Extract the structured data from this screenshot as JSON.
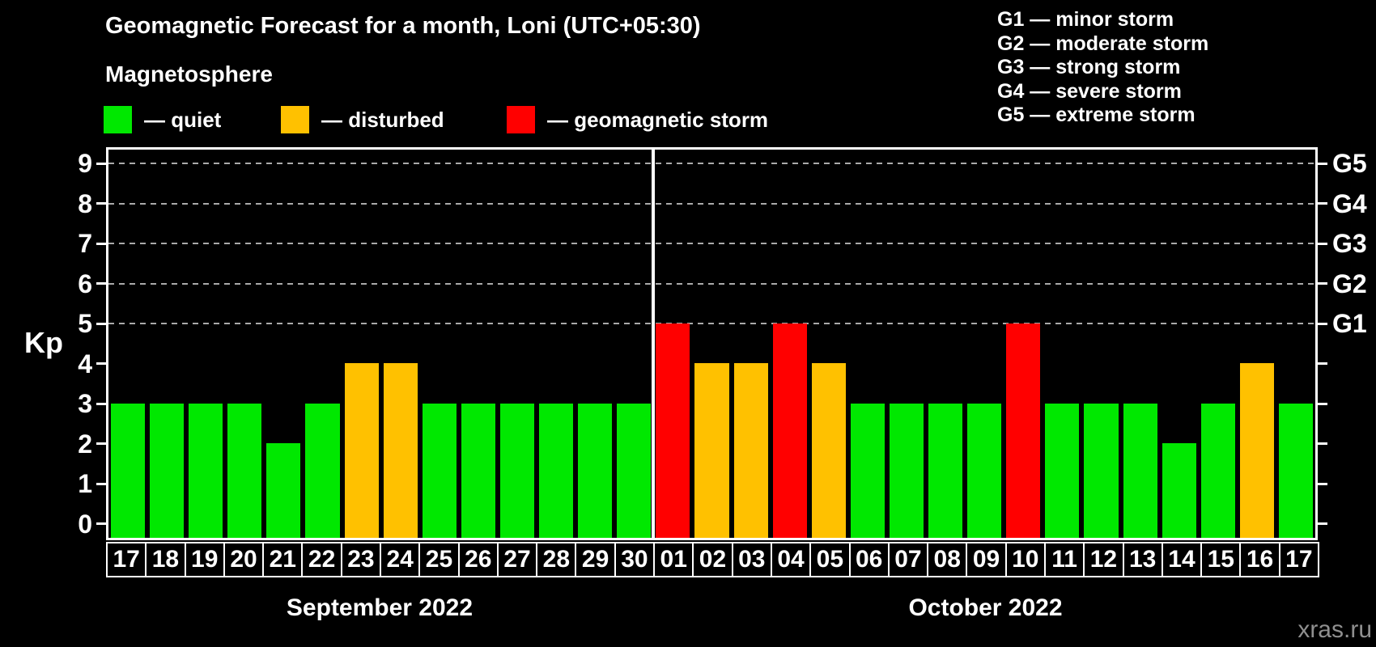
{
  "title": "Geomagnetic Forecast for a month, Loni (UTC+05:30)",
  "subtitle": "Magnetosphere",
  "legend": {
    "items": [
      {
        "name": "quiet",
        "label": "— quiet",
        "color": "#00E800"
      },
      {
        "name": "disturbed",
        "label": "— disturbed",
        "color": "#FFC100"
      },
      {
        "name": "geomagnetic-storm",
        "label": "— geomagnetic storm",
        "color": "#FF0000"
      }
    ]
  },
  "g_legend": [
    "G1 — minor storm",
    "G2 — moderate storm",
    "G3 — strong storm",
    "G4 — severe storm",
    "G5 — extreme storm"
  ],
  "axis": {
    "kp_label": "Kp",
    "yticks": [
      0,
      1,
      2,
      3,
      4,
      5,
      6,
      7,
      8,
      9
    ],
    "right_labels": [
      {
        "kp": 5,
        "label": "G1"
      },
      {
        "kp": 6,
        "label": "G2"
      },
      {
        "kp": 7,
        "label": "G3"
      },
      {
        "kp": 8,
        "label": "G4"
      },
      {
        "kp": 9,
        "label": "G5"
      }
    ],
    "gridlines_kp": [
      5,
      6,
      7,
      8,
      9
    ]
  },
  "watermark": "xras.ru",
  "chart_data": {
    "type": "bar",
    "title": "Geomagnetic Forecast for a month, Loni (UTC+05:30)",
    "ylabel": "Kp",
    "ylim": [
      0,
      9
    ],
    "grid": "dashed horizontal at Kp 5-9",
    "legend_position": "top",
    "categories": [
      "17",
      "18",
      "19",
      "20",
      "21",
      "22",
      "23",
      "24",
      "25",
      "26",
      "27",
      "28",
      "29",
      "30",
      "01",
      "02",
      "03",
      "04",
      "05",
      "06",
      "07",
      "08",
      "09",
      "10",
      "11",
      "12",
      "13",
      "14",
      "15",
      "16",
      "17"
    ],
    "values": [
      3,
      3,
      3,
      3,
      2,
      3,
      4,
      4,
      3,
      3,
      3,
      3,
      3,
      3,
      5,
      4,
      4,
      5,
      4,
      3,
      3,
      3,
      3,
      5,
      3,
      3,
      3,
      2,
      3,
      4,
      3
    ],
    "statuses": [
      "quiet",
      "quiet",
      "quiet",
      "quiet",
      "quiet",
      "quiet",
      "disturbed",
      "disturbed",
      "quiet",
      "quiet",
      "quiet",
      "quiet",
      "quiet",
      "quiet",
      "storm",
      "disturbed",
      "disturbed",
      "storm",
      "disturbed",
      "quiet",
      "quiet",
      "quiet",
      "quiet",
      "storm",
      "quiet",
      "quiet",
      "quiet",
      "quiet",
      "quiet",
      "disturbed",
      "quiet"
    ],
    "status_colors": {
      "quiet": "#00E800",
      "disturbed": "#FFC100",
      "storm": "#FF0000"
    },
    "months": [
      {
        "label": "September 2022",
        "span": 14
      },
      {
        "label": "October 2022",
        "span": 17
      }
    ],
    "month_separator_after_index": 13
  }
}
